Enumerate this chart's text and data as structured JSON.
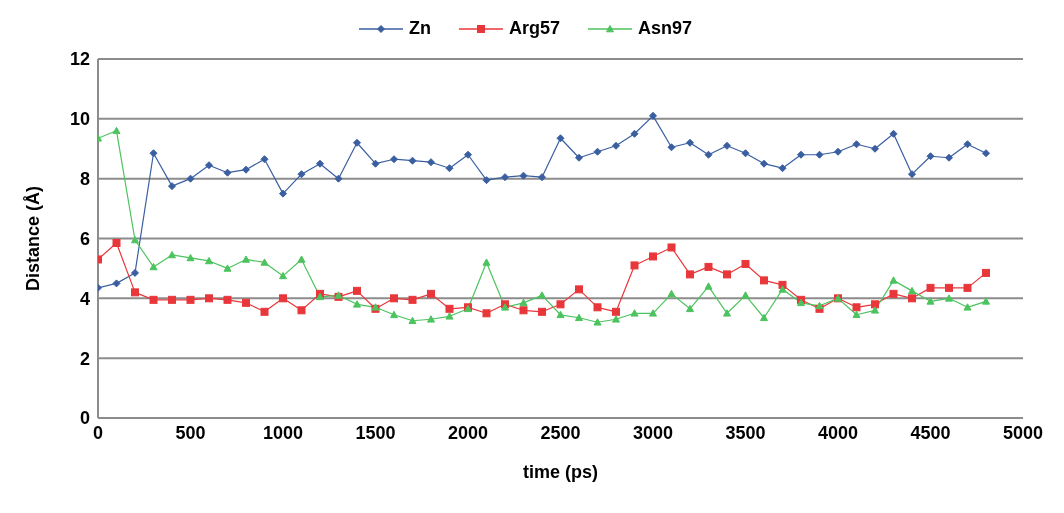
{
  "chart_data": {
    "type": "line",
    "xlabel": "time (ps)",
    "ylabel": "Distance (Å)",
    "x": [
      0,
      100,
      200,
      300,
      400,
      500,
      600,
      700,
      800,
      900,
      1000,
      1100,
      1200,
      1300,
      1400,
      1500,
      1600,
      1700,
      1800,
      1900,
      2000,
      2100,
      2200,
      2300,
      2400,
      2500,
      2600,
      2700,
      2800,
      2900,
      3000,
      3100,
      3200,
      3300,
      3400,
      3500,
      3600,
      3700,
      3800,
      3900,
      4000,
      4100,
      4200,
      4300,
      4400,
      4500,
      4600,
      4700,
      4800
    ],
    "series": [
      {
        "name": "Zn",
        "color": "#3a5fa0",
        "marker": "diamond",
        "values": [
          4.35,
          4.5,
          4.85,
          8.85,
          7.75,
          8.0,
          8.45,
          8.2,
          8.3,
          8.65,
          7.5,
          8.15,
          8.5,
          8.0,
          9.2,
          8.5,
          8.65,
          8.6,
          8.55,
          8.35,
          8.8,
          7.95,
          8.05,
          8.1,
          8.05,
          9.35,
          8.7,
          8.9,
          9.1,
          9.5,
          10.1,
          9.05,
          9.2,
          8.8,
          9.1,
          8.85,
          8.5,
          8.35,
          8.8,
          8.8,
          8.9,
          9.15,
          9.0,
          9.5,
          8.15,
          8.75,
          8.7,
          9.15,
          8.85
        ]
      },
      {
        "name": "Arg57",
        "color": "#e8373a",
        "marker": "square",
        "values": [
          5.3,
          5.85,
          4.2,
          3.95,
          3.95,
          3.95,
          4.0,
          3.95,
          3.85,
          3.55,
          4.0,
          3.6,
          4.15,
          4.05,
          4.25,
          3.65,
          4.0,
          3.95,
          4.15,
          3.65,
          3.7,
          3.5,
          3.8,
          3.6,
          3.55,
          3.8,
          4.3,
          3.7,
          3.55,
          5.1,
          5.4,
          5.7,
          4.8,
          5.05,
          4.8,
          5.15,
          4.6,
          4.45,
          3.95,
          3.65,
          4.0,
          3.7,
          3.8,
          4.15,
          4.0,
          4.35,
          4.35,
          4.35,
          4.85
        ]
      },
      {
        "name": "Asn97",
        "color": "#4cc35e",
        "marker": "triangle",
        "values": [
          9.35,
          9.6,
          5.95,
          5.05,
          5.45,
          5.35,
          5.25,
          5.0,
          5.3,
          5.2,
          4.75,
          5.3,
          4.05,
          4.1,
          3.8,
          3.7,
          3.45,
          3.25,
          3.3,
          3.4,
          3.65,
          5.2,
          3.7,
          3.85,
          4.1,
          3.45,
          3.35,
          3.2,
          3.3,
          3.5,
          3.5,
          4.15,
          3.65,
          4.4,
          3.5,
          4.1,
          3.35,
          4.3,
          3.85,
          3.75,
          4.0,
          3.45,
          3.6,
          4.6,
          4.25,
          3.9,
          4.0,
          3.7,
          3.9
        ]
      }
    ],
    "xlim": [
      0,
      5000
    ],
    "xticks": [
      0,
      500,
      1000,
      1500,
      2000,
      2500,
      3000,
      3500,
      4000,
      4500,
      5000
    ],
    "ylim": [
      0,
      12
    ],
    "yticks": [
      0,
      2,
      4,
      6,
      8,
      10,
      12
    ],
    "grid": "y",
    "legend": "top"
  }
}
